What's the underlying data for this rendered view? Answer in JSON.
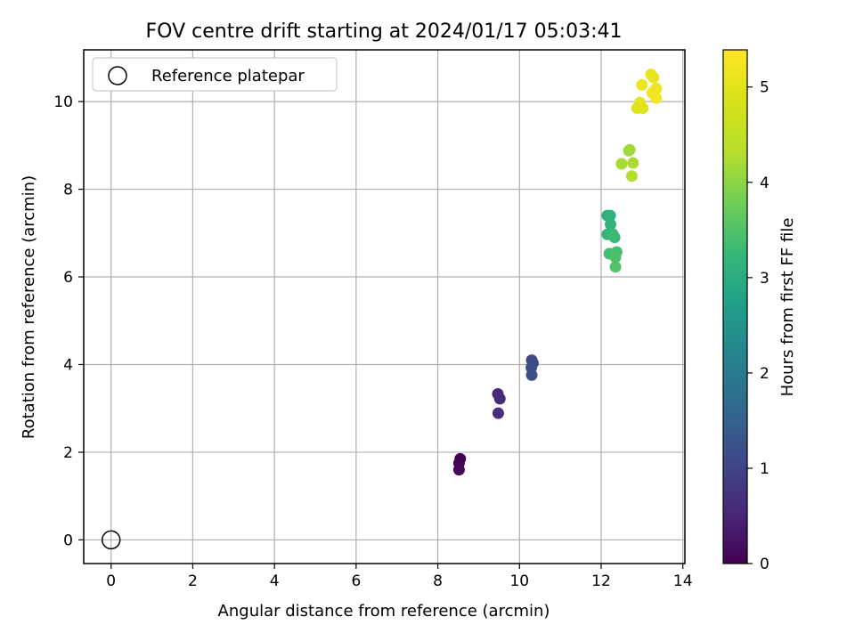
{
  "chart_data": {
    "type": "scatter",
    "title": "FOV centre drift starting at 2024/01/17 05:03:41",
    "xlabel": "Angular distance from reference (arcmin)",
    "ylabel": "Rotation from reference (arcmin)",
    "xlim": [
      -0.67,
      14.05
    ],
    "ylim": [
      -0.54,
      11.18
    ],
    "xticks": [
      0,
      2,
      4,
      6,
      8,
      10,
      12,
      14
    ],
    "xtick_labels": [
      "0",
      "2",
      "4",
      "6",
      "8",
      "10",
      "12",
      "14"
    ],
    "yticks": [
      0,
      2,
      4,
      6,
      8,
      10
    ],
    "ytick_labels": [
      "0",
      "2",
      "4",
      "6",
      "8",
      "10"
    ],
    "grid": true,
    "legend": {
      "placement": "top-left",
      "entries": [
        "Reference platepar"
      ]
    },
    "colorbar": {
      "label": "Hours from first FF file",
      "colormap": "viridis",
      "range": [
        0,
        5.39
      ],
      "ticks": [
        0,
        1,
        2,
        3,
        4,
        5
      ],
      "tick_labels": [
        "0",
        "1",
        "2",
        "3",
        "4",
        "5"
      ]
    },
    "reference_point": {
      "x": 0,
      "y": 0
    },
    "series": [
      {
        "points": [
          {
            "x": 8.55,
            "y": 1.85,
            "hours": 0.0
          },
          {
            "x": 8.52,
            "y": 1.75,
            "hours": 0.05
          },
          {
            "x": 8.52,
            "y": 1.6,
            "hours": 0.1
          },
          {
            "x": 9.47,
            "y": 3.33,
            "hours": 0.55
          },
          {
            "x": 9.52,
            "y": 3.22,
            "hours": 0.6
          },
          {
            "x": 9.48,
            "y": 2.89,
            "hours": 0.65
          },
          {
            "x": 10.3,
            "y": 4.1,
            "hours": 1.05
          },
          {
            "x": 10.33,
            "y": 4.03,
            "hours": 1.1
          },
          {
            "x": 10.29,
            "y": 3.93,
            "hours": 1.15
          },
          {
            "x": 10.3,
            "y": 3.76,
            "hours": 1.2
          },
          {
            "x": 12.15,
            "y": 7.4,
            "hours": 3.05
          },
          {
            "x": 12.22,
            "y": 7.4,
            "hours": 3.1
          },
          {
            "x": 12.23,
            "y": 7.2,
            "hours": 3.15
          },
          {
            "x": 12.15,
            "y": 6.97,
            "hours": 3.2
          },
          {
            "x": 12.28,
            "y": 6.98,
            "hours": 3.25
          },
          {
            "x": 12.33,
            "y": 6.9,
            "hours": 3.3
          },
          {
            "x": 12.2,
            "y": 6.53,
            "hours": 3.35
          },
          {
            "x": 12.38,
            "y": 6.57,
            "hours": 3.4
          },
          {
            "x": 12.35,
            "y": 6.45,
            "hours": 3.45
          },
          {
            "x": 12.35,
            "y": 6.23,
            "hours": 3.5
          },
          {
            "x": 12.68,
            "y": 8.88,
            "hours": 4.1
          },
          {
            "x": 12.7,
            "y": 8.9,
            "hours": 4.15
          },
          {
            "x": 12.5,
            "y": 8.58,
            "hours": 4.2
          },
          {
            "x": 12.78,
            "y": 8.6,
            "hours": 4.25
          },
          {
            "x": 12.75,
            "y": 8.3,
            "hours": 4.3
          },
          {
            "x": 13.22,
            "y": 10.62,
            "hours": 5.05
          },
          {
            "x": 13.28,
            "y": 10.55,
            "hours": 5.1
          },
          {
            "x": 13.0,
            "y": 10.38,
            "hours": 5.15
          },
          {
            "x": 13.35,
            "y": 10.3,
            "hours": 5.2
          },
          {
            "x": 13.25,
            "y": 10.2,
            "hours": 5.22
          },
          {
            "x": 13.35,
            "y": 10.08,
            "hours": 5.25
          },
          {
            "x": 12.95,
            "y": 9.98,
            "hours": 5.1
          },
          {
            "x": 13.02,
            "y": 9.85,
            "hours": 5.0
          },
          {
            "x": 12.88,
            "y": 9.85,
            "hours": 4.95
          }
        ]
      }
    ]
  }
}
